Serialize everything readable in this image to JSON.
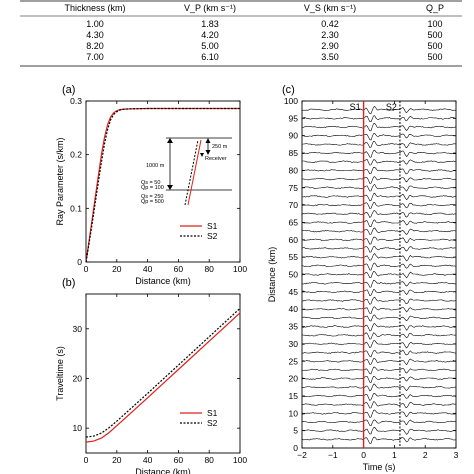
{
  "table": {
    "headers": [
      "Thickness (km)",
      "V_P (km s⁻¹)",
      "V_S (km s⁻¹)",
      "Q_P"
    ],
    "rows": [
      [
        "1.00",
        "1.83",
        "0.42",
        "100"
      ],
      [
        "4.30",
        "4.20",
        "2.30",
        "500"
      ],
      [
        "8.20",
        "5.00",
        "2.90",
        "500"
      ],
      [
        "7.00",
        "6.10",
        "3.50",
        "500"
      ]
    ]
  },
  "chart_data": [
    {
      "panel": "(a)",
      "type": "line",
      "xlabel": "Distance (km)",
      "ylabel": "Ray Parameter (s/km)",
      "xlim": [
        0,
        100
      ],
      "ylim": [
        0,
        0.3
      ],
      "xticks": [
        "0",
        "20",
        "40",
        "60",
        "80",
        "100"
      ],
      "yticks": [
        "0",
        "0.1",
        "0.2",
        "0.3"
      ],
      "legend_position": "bottom-right",
      "series": [
        {
          "name": "S1",
          "color": "#e0201b",
          "dash": "solid",
          "x": [
            0,
            2,
            4,
            6,
            8,
            10,
            12,
            14,
            16,
            18,
            20,
            22,
            25,
            30,
            40,
            60,
            80,
            100
          ],
          "y": [
            0,
            0.04,
            0.08,
            0.12,
            0.16,
            0.2,
            0.232,
            0.256,
            0.27,
            0.278,
            0.282,
            0.284,
            0.285,
            0.2855,
            0.286,
            0.286,
            0.286,
            0.286
          ]
        },
        {
          "name": "S2",
          "color": "#000000",
          "dash": "dotted",
          "x": [
            0,
            2,
            4,
            6,
            8,
            10,
            12,
            14,
            16,
            18,
            20,
            22,
            25,
            30,
            40,
            60,
            80,
            100
          ],
          "y": [
            0,
            0.035,
            0.072,
            0.11,
            0.148,
            0.186,
            0.22,
            0.247,
            0.265,
            0.275,
            0.28,
            0.283,
            0.285,
            0.2855,
            0.286,
            0.286,
            0.286,
            0.286
          ]
        }
      ],
      "inset": {
        "labels": [
          "250 m",
          "Receiver",
          "1000 m",
          "Qs = 50",
          "Qp = 100",
          "Qs = 250",
          "Qp = 500"
        ]
      }
    },
    {
      "panel": "(b)",
      "type": "line",
      "xlabel": "Distance (km)",
      "ylabel": "Traveltime (s)",
      "xlim": [
        0,
        100
      ],
      "ylim": [
        5,
        37
      ],
      "xticks": [
        "0",
        "20",
        "40",
        "60",
        "80",
        "100"
      ],
      "yticks": [
        "10",
        "20",
        "30"
      ],
      "legend_position": "bottom-right",
      "series": [
        {
          "name": "S1",
          "color": "#e0201b",
          "dash": "solid",
          "x": [
            0,
            5,
            10,
            15,
            20,
            30,
            40,
            60,
            80,
            100
          ],
          "y": [
            7.2,
            7.4,
            8.0,
            9.1,
            10.5,
            13.3,
            16.1,
            21.8,
            27.5,
            33.2
          ]
        },
        {
          "name": "S2",
          "color": "#000000",
          "dash": "dotted",
          "x": [
            0,
            5,
            10,
            15,
            20,
            30,
            40,
            60,
            80,
            100
          ],
          "y": [
            8.2,
            8.4,
            9.0,
            10.1,
            11.4,
            14.2,
            17.0,
            22.7,
            28.4,
            34.1
          ]
        }
      ]
    },
    {
      "panel": "(c)",
      "type": "line",
      "xlabel": "Time (s)",
      "ylabel": "Distance (km)",
      "xlim": [
        -2,
        3
      ],
      "ylim": [
        0,
        100
      ],
      "xticks": [
        "−2",
        "−1",
        "0",
        "1",
        "2",
        "3"
      ],
      "yticks": [
        "0",
        "5",
        "10",
        "15",
        "20",
        "25",
        "30",
        "35",
        "40",
        "45",
        "50",
        "55",
        "60",
        "65",
        "70",
        "75",
        "80",
        "85",
        "90",
        "95",
        "100"
      ],
      "markers": [
        {
          "name": "S1",
          "time": 0,
          "color": "#e0201b",
          "dash": "solid"
        },
        {
          "name": "S2",
          "time": 1.18,
          "color": "#000000",
          "dash": "dotted"
        }
      ],
      "trace_spacing_km": 2.5
    }
  ]
}
